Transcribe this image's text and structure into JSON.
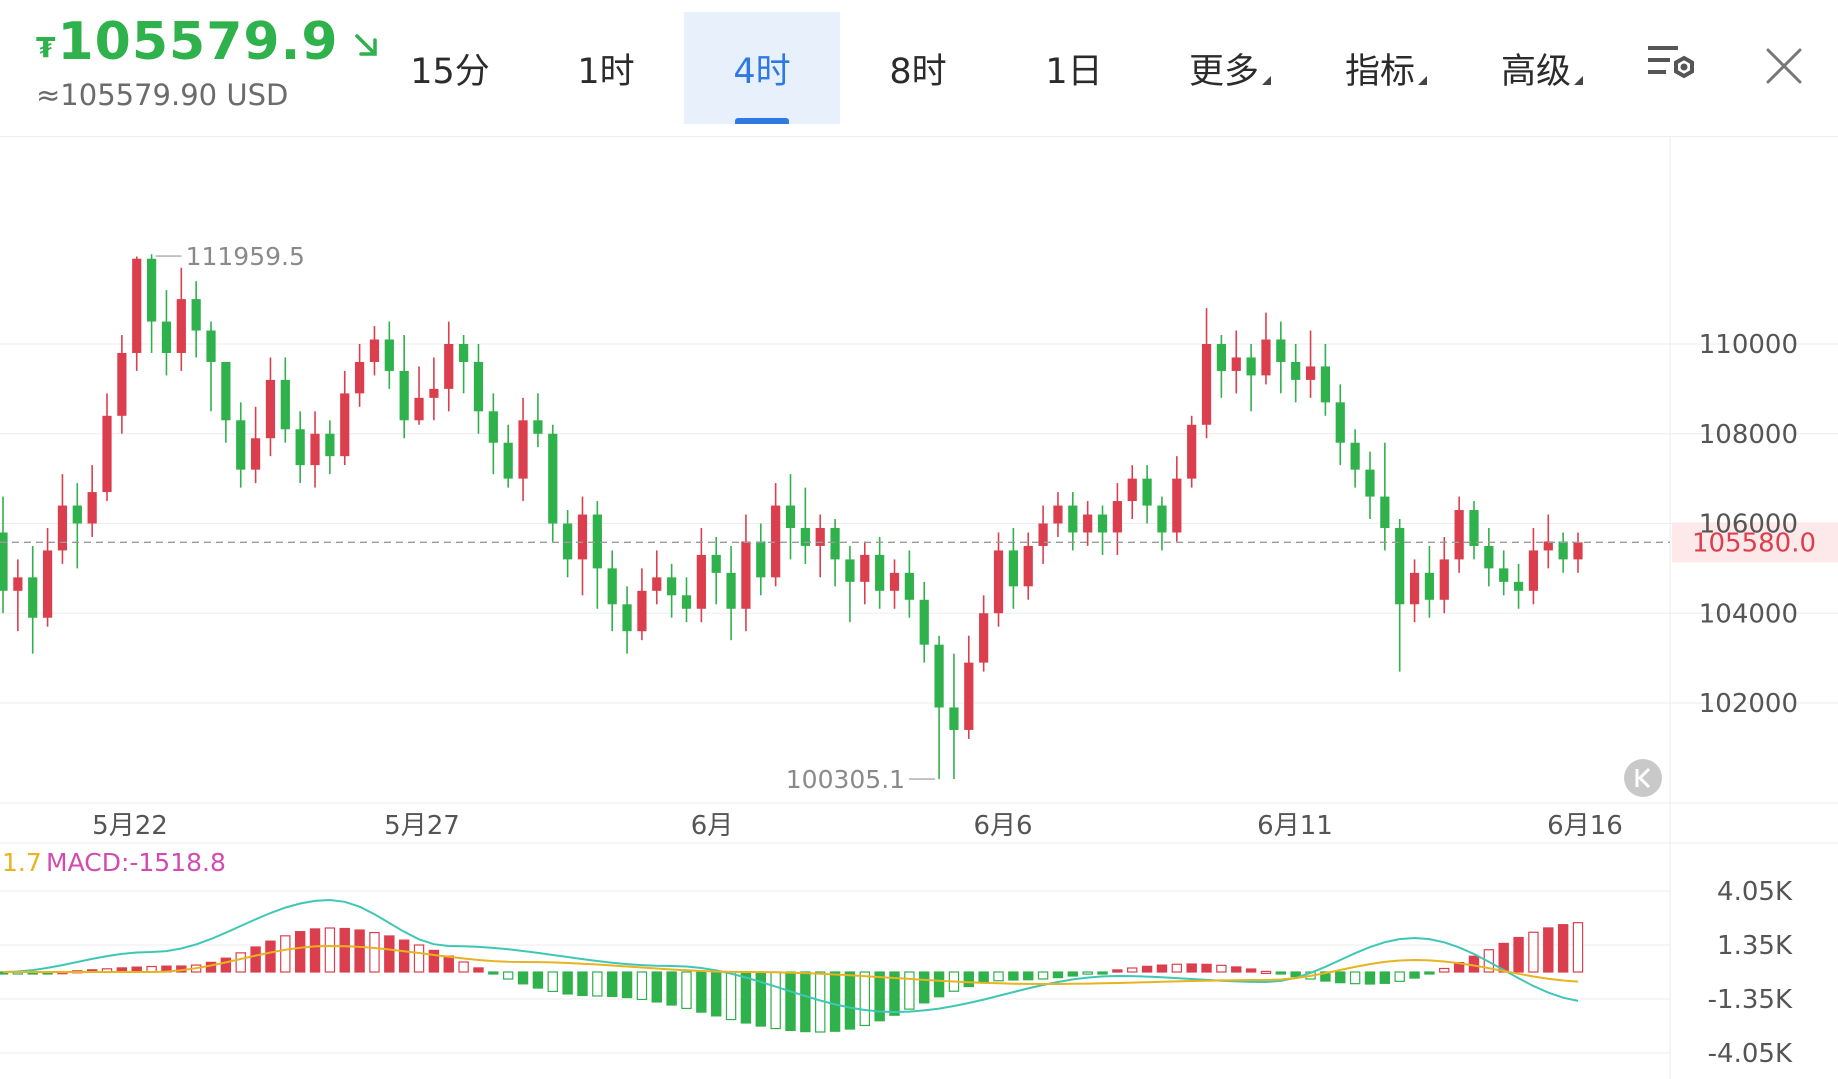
{
  "header": {
    "currency_symbol": "₮",
    "price": "105579.9",
    "price_usd": "≈105579.90 USD",
    "price_color": "#2fb14b",
    "trend_icon": "down-right-arrow-icon"
  },
  "tabs": [
    {
      "label": "15分",
      "active": false
    },
    {
      "label": "1时",
      "active": false
    },
    {
      "label": "4时",
      "active": true
    },
    {
      "label": "8时",
      "active": false
    },
    {
      "label": "1日",
      "active": false
    },
    {
      "label": "更多",
      "active": false,
      "dropdown": true
    },
    {
      "label": "指标",
      "active": false,
      "dropdown": true
    },
    {
      "label": "高级",
      "active": false,
      "dropdown": true
    }
  ],
  "toolbar": {
    "settings_icon": "chart-settings-icon",
    "close_icon": "close-icon"
  },
  "colors": {
    "up": "#db3f4d",
    "down": "#2fb14b",
    "accent": "#2f79e3",
    "dif": "#3fc7b6",
    "dea": "#e8b320",
    "macd_label": "#d14bb0"
  },
  "chart_data": [
    {
      "type": "candlestick",
      "timeframe": "4时",
      "ylim": [
        100305.1,
        111959.5
      ],
      "y_ticks": [
        102000,
        104000,
        106000,
        108000,
        110000
      ],
      "y_tick_labels": [
        "102000",
        "104000",
        "106000",
        "108000",
        "110000"
      ],
      "x_tick_labels": [
        "5月22",
        "5月27",
        "6月",
        "6月6",
        "6月11",
        "6月16"
      ],
      "last_price": 105580.0,
      "last_price_label": "105580.0",
      "high": {
        "value": 111959.5,
        "label": "111959.5"
      },
      "low": {
        "value": 100305.1,
        "label": "100305.1"
      },
      "grid": true,
      "candles": [
        [
          105800,
          104500,
          106600,
          104000
        ],
        [
          104500,
          104800,
          105200,
          103600
        ],
        [
          104800,
          103900,
          105500,
          103100
        ],
        [
          103900,
          105400,
          105900,
          103700
        ],
        [
          105400,
          106400,
          107100,
          105100
        ],
        [
          106400,
          106000,
          106900,
          105000
        ],
        [
          106000,
          106700,
          107300,
          105700
        ],
        [
          106700,
          108400,
          108900,
          106500
        ],
        [
          108400,
          109800,
          110200,
          108000
        ],
        [
          109800,
          111900,
          111950,
          109400
        ],
        [
          111900,
          110500,
          112000,
          109800
        ],
        [
          110500,
          109800,
          111200,
          109300
        ],
        [
          109800,
          111000,
          111700,
          109400
        ],
        [
          111000,
          110300,
          111400,
          109700
        ],
        [
          110300,
          109600,
          110500,
          108500
        ],
        [
          109600,
          108300,
          109400,
          107800
        ],
        [
          108300,
          107200,
          108700,
          106800
        ],
        [
          107200,
          107900,
          108600,
          106900
        ],
        [
          107900,
          109200,
          109700,
          107500
        ],
        [
          109200,
          108100,
          109700,
          107800
        ],
        [
          108100,
          107300,
          108500,
          106900
        ],
        [
          107300,
          108000,
          108500,
          106800
        ],
        [
          108000,
          107500,
          108300,
          107100
        ],
        [
          107500,
          108900,
          109400,
          107300
        ],
        [
          108900,
          109600,
          110000,
          108600
        ],
        [
          109600,
          110100,
          110400,
          109300
        ],
        [
          110100,
          109400,
          110500,
          109000
        ],
        [
          109400,
          108300,
          110200,
          107900
        ],
        [
          108300,
          108800,
          109500,
          108200
        ],
        [
          108800,
          109000,
          109700,
          108300
        ],
        [
          109000,
          110000,
          110500,
          108500
        ],
        [
          110000,
          109600,
          110200,
          108900
        ],
        [
          109600,
          108500,
          110000,
          108000
        ],
        [
          108500,
          107800,
          108900,
          107100
        ],
        [
          107800,
          107000,
          108200,
          106800
        ],
        [
          107000,
          108300,
          108800,
          106500
        ],
        [
          108300,
          108000,
          108900,
          107700
        ],
        [
          108000,
          106000,
          108200,
          105600
        ],
        [
          106000,
          105200,
          106300,
          104800
        ],
        [
          105200,
          106200,
          106600,
          104400
        ],
        [
          106200,
          105000,
          106500,
          104100
        ],
        [
          105000,
          104200,
          105400,
          103600
        ],
        [
          104200,
          103600,
          104600,
          103100
        ],
        [
          103600,
          104500,
          105000,
          103400
        ],
        [
          104500,
          104800,
          105400,
          104200
        ],
        [
          104800,
          104400,
          105100,
          103900
        ],
        [
          104400,
          104100,
          104800,
          103800
        ],
        [
          104100,
          105300,
          105900,
          103800
        ],
        [
          105300,
          104900,
          105700,
          104200
        ],
        [
          104900,
          104100,
          105500,
          103400
        ],
        [
          104100,
          105600,
          106200,
          103600
        ],
        [
          105600,
          104800,
          106000,
          104400
        ],
        [
          104800,
          106400,
          106900,
          104600
        ],
        [
          106400,
          105900,
          107100,
          105200
        ],
        [
          105900,
          105500,
          106800,
          105100
        ],
        [
          105500,
          105900,
          106200,
          104800
        ],
        [
          105900,
          105200,
          106100,
          104600
        ],
        [
          105200,
          104700,
          105500,
          103800
        ],
        [
          104700,
          105300,
          105600,
          104200
        ],
        [
          105300,
          104500,
          105700,
          104100
        ],
        [
          104500,
          104900,
          105200,
          104100
        ],
        [
          104900,
          104300,
          105400,
          103900
        ],
        [
          104300,
          103300,
          104700,
          102900
        ],
        [
          103300,
          101900,
          103500,
          100305
        ],
        [
          101900,
          101400,
          103100,
          100305
        ],
        [
          101400,
          102900,
          103500,
          101200
        ],
        [
          102900,
          104000,
          104400,
          102700
        ],
        [
          104000,
          105400,
          105800,
          103700
        ],
        [
          105400,
          104600,
          105900,
          104100
        ],
        [
          104600,
          105500,
          105800,
          104300
        ],
        [
          105500,
          106000,
          106400,
          105100
        ],
        [
          106000,
          106400,
          106700,
          105700
        ],
        [
          106400,
          105800,
          106700,
          105400
        ],
        [
          105800,
          106200,
          106500,
          105500
        ],
        [
          106200,
          105800,
          106400,
          105300
        ],
        [
          105800,
          106500,
          106900,
          105300
        ],
        [
          106500,
          107000,
          107300,
          106100
        ],
        [
          107000,
          106400,
          107300,
          106000
        ],
        [
          106400,
          105800,
          106600,
          105400
        ],
        [
          105800,
          107000,
          107500,
          105600
        ],
        [
          107000,
          108200,
          108400,
          106800
        ],
        [
          108200,
          110000,
          110800,
          107900
        ],
        [
          110000,
          109400,
          110200,
          108800
        ],
        [
          109400,
          109700,
          110300,
          108900
        ],
        [
          109700,
          109300,
          110000,
          108500
        ],
        [
          109300,
          110100,
          110700,
          109100
        ],
        [
          110100,
          109600,
          110500,
          108900
        ],
        [
          109600,
          109200,
          110000,
          108700
        ],
        [
          109200,
          109500,
          110300,
          108800
        ],
        [
          109500,
          108700,
          110000,
          108400
        ],
        [
          108700,
          107800,
          109100,
          107300
        ],
        [
          107800,
          107200,
          108100,
          106800
        ],
        [
          107200,
          106600,
          107600,
          106100
        ],
        [
          106600,
          105900,
          107800,
          105400
        ],
        [
          105900,
          104200,
          106100,
          102700
        ],
        [
          104200,
          104900,
          105200,
          103800
        ],
        [
          104900,
          104300,
          105500,
          103900
        ],
        [
          104300,
          105200,
          105700,
          104000
        ],
        [
          105200,
          106300,
          106600,
          104900
        ],
        [
          106300,
          105500,
          106500,
          105200
        ],
        [
          105500,
          105000,
          105900,
          104600
        ],
        [
          105000,
          104700,
          105400,
          104400
        ],
        [
          104700,
          104500,
          105100,
          104100
        ],
        [
          104500,
          105400,
          105900,
          104200
        ],
        [
          105400,
          105600,
          106200,
          105000
        ],
        [
          105600,
          105200,
          105800,
          104900
        ],
        [
          105200,
          105580,
          105800,
          104900
        ]
      ]
    },
    {
      "type": "bar",
      "name": "MACD",
      "label_prefix": "1.7",
      "label": "MACD:-1518.8",
      "ylim": [
        -4050,
        4050
      ],
      "y_tick_labels": [
        "4.05K",
        "1.35K",
        "-1.35K",
        "-4.05K"
      ],
      "y_ticks": [
        4050,
        1350,
        -1350,
        -4050
      ],
      "macd_hist_peaks_x": [
        0,
        12,
        22,
        40,
        55,
        68,
        80,
        92,
        107
      ],
      "macd_hist_peaks_y": [
        -80,
        300,
        2200,
        -1200,
        -3000,
        -400,
        400,
        -600,
        2500
      ],
      "dif_keys_x": [
        0,
        10,
        22,
        30,
        45,
        60,
        75,
        85,
        95,
        107
      ],
      "dif_keys_y": [
        0,
        1000,
        3600,
        1300,
        300,
        -2000,
        -200,
        -500,
        1700,
        -1500
      ],
      "dea_keys_x": [
        0,
        10,
        22,
        35,
        50,
        70,
        85,
        95,
        107
      ],
      "dea_keys_y": [
        0,
        0,
        1300,
        500,
        0,
        -600,
        -400,
        600,
        -500
      ],
      "histogram_up_color": "#db3f4d",
      "histogram_down_color": "#2fb14b"
    }
  ]
}
